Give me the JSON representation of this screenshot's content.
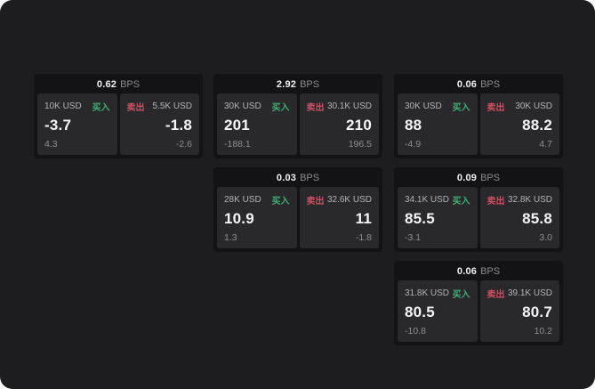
{
  "page": {
    "background": "#1d1d1f",
    "card_background": "#131315",
    "panel_background": "#29292b",
    "buy_color": "#3fae72",
    "sell_color": "#cf4f63"
  },
  "labels": {
    "bps_unit": "BPS",
    "buy": "买入",
    "sell": "卖出"
  },
  "cards": [
    {
      "bps": "0.62",
      "buy": {
        "amount": "10K USD",
        "value": "-3.7",
        "sub": "4.3"
      },
      "sell": {
        "amount": "5.5K USD",
        "value": "-1.8",
        "sub": "-2.6"
      }
    },
    {
      "bps": "2.92",
      "buy": {
        "amount": "30K USD",
        "value": "201",
        "sub": "-188.1"
      },
      "sell": {
        "amount": "30.1K USD",
        "value": "210",
        "sub": "196.5"
      }
    },
    {
      "bps": "0.06",
      "buy": {
        "amount": "30K USD",
        "value": "88",
        "sub": "-4.9"
      },
      "sell": {
        "amount": "30K USD",
        "value": "88.2",
        "sub": "4.7"
      }
    },
    {
      "bps": "0.03",
      "buy": {
        "amount": "28K USD",
        "value": "10.9",
        "sub": "1.3"
      },
      "sell": {
        "amount": "32.6K USD",
        "value": "11",
        "sub": "-1.8"
      }
    },
    {
      "bps": "0.09",
      "buy": {
        "amount": "34.1K USD",
        "value": "85.5",
        "sub": "-3.1"
      },
      "sell": {
        "amount": "32.8K USD",
        "value": "85.8",
        "sub": "3.0"
      }
    },
    {
      "bps": "0.06",
      "buy": {
        "amount": "31.8K USD",
        "value": "80.5",
        "sub": "-10.8"
      },
      "sell": {
        "amount": "39.1K USD",
        "value": "80.7",
        "sub": "10.2"
      }
    }
  ]
}
